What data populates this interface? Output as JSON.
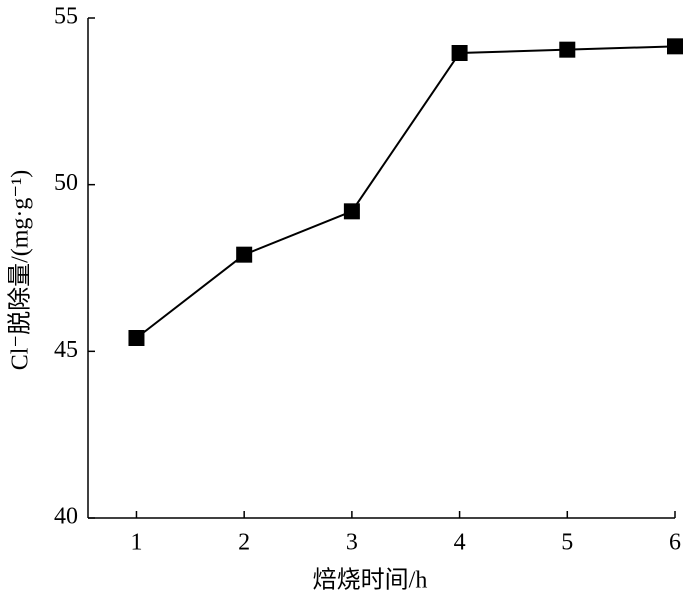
{
  "chart_data": {
    "type": "line",
    "x_label": "焙烧时间/h",
    "y_label": "Cl⁻脱除量/(mg·g⁻¹)",
    "x": [
      1,
      2,
      3,
      4,
      5,
      6
    ],
    "series": [
      {
        "color": "#000000",
        "values": [
          45.4,
          47.9,
          49.2,
          53.95,
          54.05,
          54.15
        ]
      }
    ],
    "xlim": [
      0.55,
      6
    ],
    "xticks": [
      1,
      2,
      3,
      4,
      5,
      6
    ],
    "ylim": [
      40,
      55
    ],
    "yticks": [
      40,
      45,
      50,
      55
    ]
  }
}
